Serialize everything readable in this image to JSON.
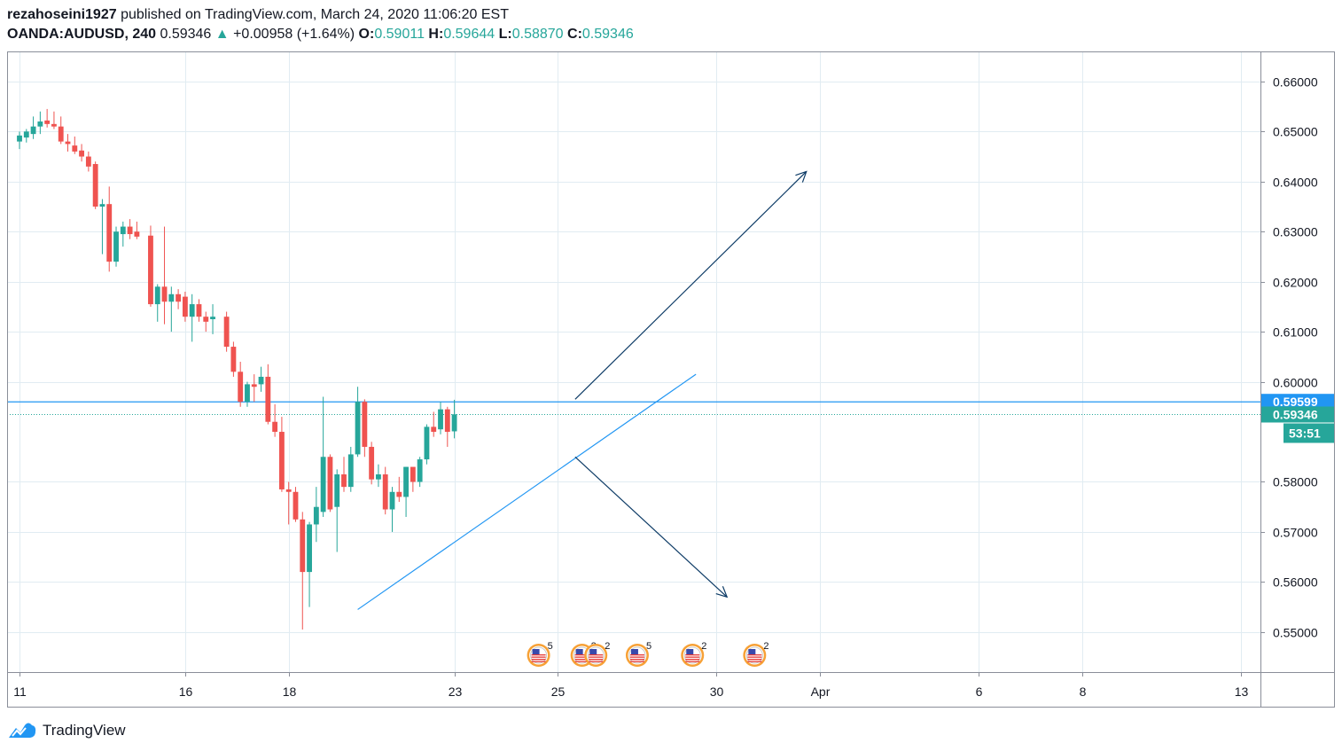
{
  "header": {
    "author": "rezahoseini1927",
    "published_text": "published on TradingView.com, March 24, 2020 11:06:20 EST",
    "symbol": "OANDA:AUDUSD, 240",
    "last": "0.59346",
    "change_arrow": "▲",
    "change": "+0.00958 (+1.64%)",
    "o_label": "O:",
    "o_value": "0.59011",
    "h_label": "H:",
    "h_value": "0.59644",
    "l_label": "L:",
    "l_value": "0.58870",
    "c_label": "C:",
    "c_value": "0.59346"
  },
  "colors": {
    "up": "#26a69a",
    "down": "#ef5350",
    "grid": "#e1ecf2",
    "axis_text": "#131722",
    "trend_line": "#2196f3",
    "arrow": "#0d3b66",
    "level_label": "#2196f3",
    "price_label": "#26a69a"
  },
  "footer": {
    "brand": "TradingView",
    "logo_icon": "tradingview-logo-icon"
  },
  "chart_data": {
    "type": "candlestick",
    "grid": true,
    "ylim": [
      0.542,
      0.666
    ],
    "y_ticks": [
      "0.66000",
      "0.65000",
      "0.64000",
      "0.63000",
      "0.62000",
      "0.61000",
      "0.60000",
      "0.58000",
      "0.57000",
      "0.56000",
      "0.55000"
    ],
    "x_ticks": [
      {
        "label": "11",
        "bar": 0
      },
      {
        "label": "16",
        "bar": 24
      },
      {
        "label": "18",
        "bar": 39
      },
      {
        "label": "23",
        "bar": 63
      },
      {
        "label": "25",
        "bar": 78
      },
      {
        "label": "30",
        "bar": 101
      },
      {
        "label": "Apr",
        "bar": 116
      },
      {
        "label": "6",
        "bar": 139
      },
      {
        "label": "8",
        "bar": 154
      },
      {
        "label": "13",
        "bar": 177
      }
    ],
    "x_bars_total": 178.5,
    "last_price": 0.59346,
    "last_price_label": "0.59346",
    "countdown": "53:51",
    "level": 0.59599,
    "level_label": "0.59599",
    "candles": [
      {
        "o": 0.648,
        "h": 0.65,
        "l": 0.6465,
        "c": 0.6492
      },
      {
        "o": 0.6488,
        "h": 0.6505,
        "l": 0.6478,
        "c": 0.65
      },
      {
        "o": 0.6495,
        "h": 0.653,
        "l": 0.6485,
        "c": 0.651
      },
      {
        "o": 0.651,
        "h": 0.654,
        "l": 0.6495,
        "c": 0.652
      },
      {
        "o": 0.6522,
        "h": 0.6545,
        "l": 0.6508,
        "c": 0.6515
      },
      {
        "o": 0.6515,
        "h": 0.654,
        "l": 0.6505,
        "c": 0.651
      },
      {
        "o": 0.651,
        "h": 0.653,
        "l": 0.6475,
        "c": 0.648
      },
      {
        "o": 0.648,
        "h": 0.6495,
        "l": 0.646,
        "c": 0.6475
      },
      {
        "o": 0.6472,
        "h": 0.649,
        "l": 0.6455,
        "c": 0.646
      },
      {
        "o": 0.6462,
        "h": 0.6475,
        "l": 0.644,
        "c": 0.645
      },
      {
        "o": 0.645,
        "h": 0.646,
        "l": 0.642,
        "c": 0.643
      },
      {
        "o": 0.6435,
        "h": 0.644,
        "l": 0.6345,
        "c": 0.635
      },
      {
        "o": 0.635,
        "h": 0.6365,
        "l": 0.6255,
        "c": 0.6355
      },
      {
        "o": 0.6355,
        "h": 0.639,
        "l": 0.622,
        "c": 0.624
      },
      {
        "o": 0.624,
        "h": 0.631,
        "l": 0.623,
        "c": 0.63
      },
      {
        "o": 0.6295,
        "h": 0.632,
        "l": 0.627,
        "c": 0.631
      },
      {
        "o": 0.631,
        "h": 0.6325,
        "l": 0.6285,
        "c": 0.6295
      },
      {
        "o": 0.63,
        "h": 0.632,
        "l": 0.6285,
        "c": 0.629
      },
      {
        "o": 0.6292,
        "h": 0.6312,
        "l": 0.615,
        "c": 0.6155
      },
      {
        "o": 0.6155,
        "h": 0.6195,
        "l": 0.612,
        "c": 0.619
      },
      {
        "o": 0.619,
        "h": 0.631,
        "l": 0.6115,
        "c": 0.616
      },
      {
        "o": 0.616,
        "h": 0.619,
        "l": 0.61,
        "c": 0.6175
      },
      {
        "o": 0.6175,
        "h": 0.6185,
        "l": 0.6145,
        "c": 0.616
      },
      {
        "o": 0.617,
        "h": 0.618,
        "l": 0.612,
        "c": 0.613
      },
      {
        "o": 0.613,
        "h": 0.6175,
        "l": 0.608,
        "c": 0.6155
      },
      {
        "o": 0.6155,
        "h": 0.6165,
        "l": 0.612,
        "c": 0.613
      },
      {
        "o": 0.613,
        "h": 0.614,
        "l": 0.61,
        "c": 0.612
      },
      {
        "o": 0.6125,
        "h": 0.6155,
        "l": 0.6095,
        "c": 0.613
      },
      {
        "o": 0.613,
        "h": 0.614,
        "l": 0.606,
        "c": 0.607
      },
      {
        "o": 0.607,
        "h": 0.608,
        "l": 0.601,
        "c": 0.602
      },
      {
        "o": 0.602,
        "h": 0.604,
        "l": 0.595,
        "c": 0.596
      },
      {
        "o": 0.596,
        "h": 0.6,
        "l": 0.595,
        "c": 0.5995
      },
      {
        "o": 0.5995,
        "h": 0.6015,
        "l": 0.596,
        "c": 0.599
      },
      {
        "o": 0.5995,
        "h": 0.603,
        "l": 0.598,
        "c": 0.601
      },
      {
        "o": 0.601,
        "h": 0.6035,
        "l": 0.5915,
        "c": 0.592
      },
      {
        "o": 0.592,
        "h": 0.5955,
        "l": 0.589,
        "c": 0.59
      },
      {
        "o": 0.59,
        "h": 0.593,
        "l": 0.578,
        "c": 0.5785
      },
      {
        "o": 0.5785,
        "h": 0.58,
        "l": 0.5715,
        "c": 0.578
      },
      {
        "o": 0.578,
        "h": 0.579,
        "l": 0.572,
        "c": 0.5725
      },
      {
        "o": 0.5725,
        "h": 0.574,
        "l": 0.5505,
        "c": 0.562
      },
      {
        "o": 0.562,
        "h": 0.572,
        "l": 0.555,
        "c": 0.5715
      },
      {
        "o": 0.5715,
        "h": 0.579,
        "l": 0.568,
        "c": 0.575
      },
      {
        "o": 0.574,
        "h": 0.597,
        "l": 0.573,
        "c": 0.585
      },
      {
        "o": 0.585,
        "h": 0.5855,
        "l": 0.574,
        "c": 0.5745
      },
      {
        "o": 0.575,
        "h": 0.5825,
        "l": 0.566,
        "c": 0.5815
      },
      {
        "o": 0.5815,
        "h": 0.585,
        "l": 0.578,
        "c": 0.579
      },
      {
        "o": 0.579,
        "h": 0.587,
        "l": 0.578,
        "c": 0.5855
      },
      {
        "o": 0.5855,
        "h": 0.599,
        "l": 0.585,
        "c": 0.596
      },
      {
        "o": 0.596,
        "h": 0.5965,
        "l": 0.585,
        "c": 0.587
      },
      {
        "o": 0.587,
        "h": 0.588,
        "l": 0.5795,
        "c": 0.5805
      },
      {
        "o": 0.5805,
        "h": 0.5835,
        "l": 0.579,
        "c": 0.5815
      },
      {
        "o": 0.5815,
        "h": 0.583,
        "l": 0.5735,
        "c": 0.5745
      },
      {
        "o": 0.5745,
        "h": 0.579,
        "l": 0.57,
        "c": 0.578
      },
      {
        "o": 0.578,
        "h": 0.581,
        "l": 0.576,
        "c": 0.577
      },
      {
        "o": 0.577,
        "h": 0.583,
        "l": 0.573,
        "c": 0.583
      },
      {
        "o": 0.583,
        "h": 0.5825,
        "l": 0.578,
        "c": 0.58
      },
      {
        "o": 0.58,
        "h": 0.585,
        "l": 0.579,
        "c": 0.5845
      },
      {
        "o": 0.5845,
        "h": 0.5915,
        "l": 0.5835,
        "c": 0.591
      },
      {
        "o": 0.591,
        "h": 0.594,
        "l": 0.589,
        "c": 0.59
      },
      {
        "o": 0.5905,
        "h": 0.596,
        "l": 0.5895,
        "c": 0.5945
      },
      {
        "o": 0.5945,
        "h": 0.595,
        "l": 0.587,
        "c": 0.59
      },
      {
        "o": 0.5901,
        "h": 0.5964,
        "l": 0.5887,
        "c": 0.5935
      }
    ],
    "candle_bars": [
      0,
      1,
      2,
      3,
      4,
      5,
      6,
      7,
      8,
      9,
      10,
      11,
      12,
      13,
      14,
      15,
      16,
      17,
      19,
      20,
      21,
      22,
      23,
      24,
      25,
      26,
      27,
      28,
      30,
      31,
      32,
      33,
      34,
      35,
      36,
      37,
      38,
      39,
      40,
      41,
      42,
      43,
      44,
      45,
      46,
      47,
      48,
      49,
      50,
      51,
      52,
      53,
      54,
      55,
      56,
      57,
      58,
      59,
      60,
      61,
      62,
      63
    ],
    "trend_line": {
      "from": {
        "bar": 49,
        "price": 0.5545
      },
      "to": {
        "bar": 98,
        "price": 0.6015
      }
    },
    "arrow_up": {
      "from": {
        "bar": 80.5,
        "price": 0.5965
      },
      "to": {
        "bar": 114,
        "price": 0.642
      }
    },
    "arrow_down": {
      "from": {
        "bar": 80.5,
        "price": 0.585
      },
      "to": {
        "bar": 102.5,
        "price": 0.557
      }
    },
    "events": [
      {
        "bar": 75.2,
        "count": "5"
      },
      {
        "bar": 81.5,
        "count": "2"
      },
      {
        "bar": 83.5,
        "count": "2"
      },
      {
        "bar": 89.5,
        "count": "5"
      },
      {
        "bar": 97.5,
        "count": "2"
      },
      {
        "bar": 106.5,
        "count": "2"
      }
    ]
  }
}
